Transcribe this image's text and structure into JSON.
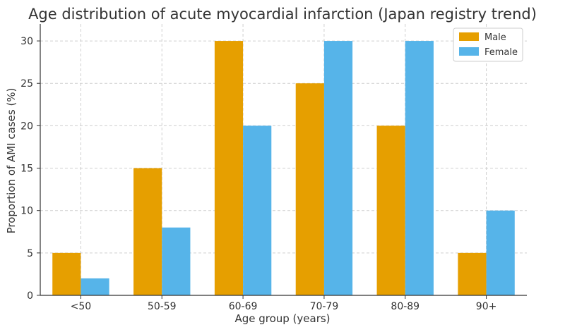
{
  "chart_data": {
    "type": "bar",
    "title": "Age distribution of acute myocardial infarction (Japan registry trend)",
    "xlabel": "Age group (years)",
    "ylabel": "Proportion of AMI cases (%)",
    "categories": [
      "<50",
      "50-59",
      "60-69",
      "70-79",
      "80-89",
      "90+"
    ],
    "series": [
      {
        "name": "Male",
        "color": "#E69F00",
        "values": [
          5,
          15,
          30,
          25,
          20,
          5
        ]
      },
      {
        "name": "Female",
        "color": "#56B4E9",
        "values": [
          2,
          8,
          20,
          30,
          30,
          10
        ]
      }
    ],
    "ylim": [
      0,
      32
    ],
    "yticks": [
      0,
      5,
      10,
      15,
      20,
      25,
      30
    ],
    "grid": true,
    "legend_position": "top-right"
  }
}
